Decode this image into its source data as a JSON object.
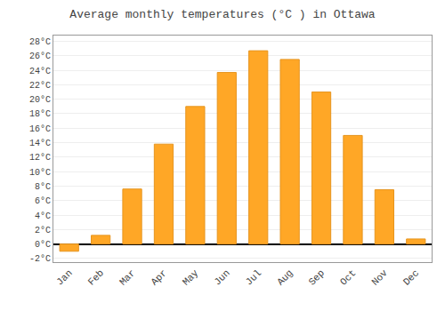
{
  "chart_data": {
    "type": "bar",
    "title": "Average monthly temperatures (°C ) in Ottawa",
    "categories": [
      "Jan",
      "Feb",
      "Mar",
      "Apr",
      "May",
      "Jun",
      "Jul",
      "Aug",
      "Sep",
      "Oct",
      "Nov",
      "Dec"
    ],
    "values": [
      -1.0,
      1.2,
      7.6,
      13.8,
      19.0,
      23.7,
      26.7,
      25.5,
      21.0,
      15.0,
      7.5,
      0.7
    ],
    "color": "#FFA726",
    "ylim": [
      -2.5,
      28.8
    ],
    "yticks": [
      {
        "value": -2,
        "label": "-2°C"
      },
      {
        "value": 0,
        "label": "0°C"
      },
      {
        "value": 2,
        "label": "2°C"
      },
      {
        "value": 4,
        "label": "4°C"
      },
      {
        "value": 6,
        "label": "6°C"
      },
      {
        "value": 8,
        "label": "8°C"
      },
      {
        "value": 10,
        "label": "10°C"
      },
      {
        "value": 12,
        "label": "12°C"
      },
      {
        "value": 14,
        "label": "14°C"
      },
      {
        "value": 16,
        "label": "16°C"
      },
      {
        "value": 18,
        "label": "18°C"
      },
      {
        "value": 20,
        "label": "20°C"
      },
      {
        "value": 22,
        "label": "22°C"
      },
      {
        "value": 24,
        "label": "24°C"
      },
      {
        "value": 26,
        "label": "26°C"
      },
      {
        "value": 28,
        "label": "28°C"
      }
    ],
    "grid": true
  }
}
